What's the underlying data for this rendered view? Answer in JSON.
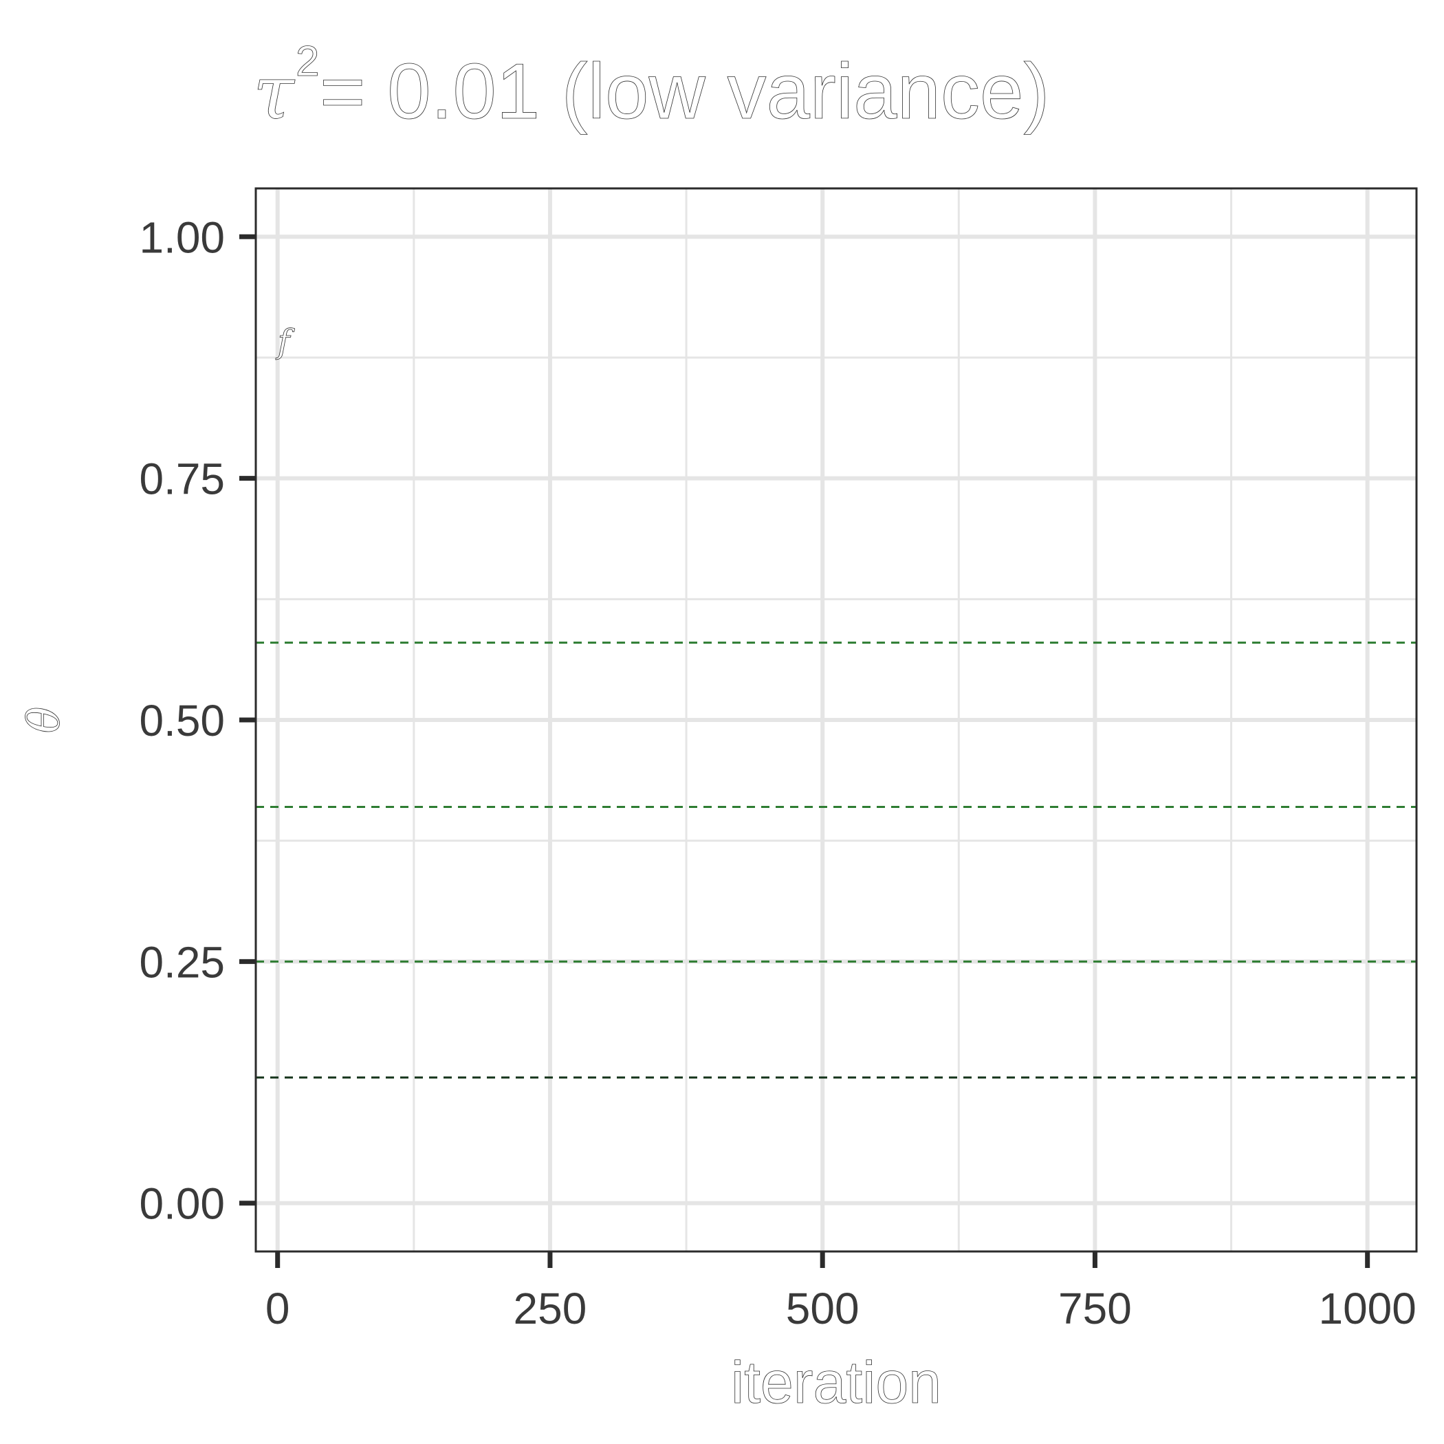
{
  "chart_data": {
    "type": "line",
    "title_symbol": "τ",
    "title_exponent": "2",
    "title_rest": "= 0.01 (low variance)",
    "xlabel": "iteration",
    "ylabel": "θ",
    "trace_label": "f",
    "xlim": [
      -20,
      1045
    ],
    "ylim": [
      -0.05,
      1.05
    ],
    "x_ticks": [
      0,
      250,
      500,
      750,
      1000
    ],
    "x_tick_labels": [
      "0",
      "250",
      "500",
      "750",
      "1000"
    ],
    "x_minor_ticks": [
      125,
      375,
      625,
      875
    ],
    "y_ticks": [
      0,
      0.25,
      0.5,
      0.75,
      1.0
    ],
    "y_tick_labels": [
      "0.00",
      "0.25",
      "0.50",
      "0.75",
      "1.00"
    ],
    "y_minor_ticks": [
      0.375,
      0.625,
      0.875
    ],
    "reference_lines": [
      {
        "y": 0.58,
        "color": "#2e7d32"
      },
      {
        "y": 0.41,
        "color": "#2e7d32"
      },
      {
        "y": 0.25,
        "color": "#2e7d32"
      },
      {
        "y": 0.13,
        "color": "#14331a"
      }
    ],
    "grid": true,
    "colors": {
      "grid": "#e5e5e5",
      "axis": "#2b2b2b",
      "tick_text": "#3a3a3a"
    }
  }
}
